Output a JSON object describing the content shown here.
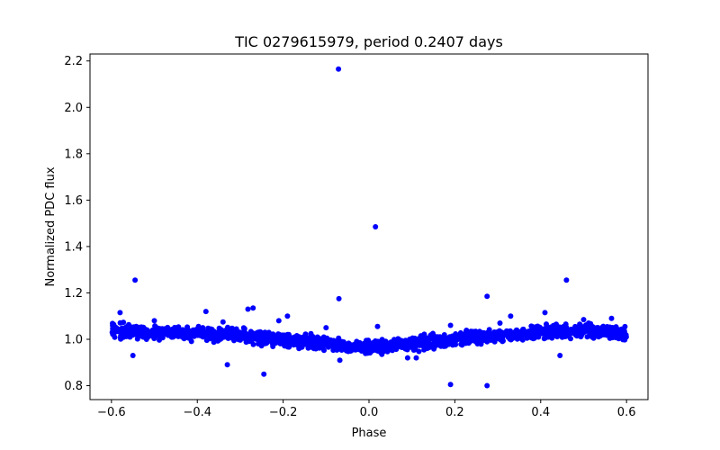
{
  "chart_data": {
    "type": "scatter",
    "title": "TIC 0279615979, period 0.2407 days",
    "xlabel": "Phase",
    "ylabel": "Normalized PDC flux",
    "xlim": [
      -0.65,
      0.65
    ],
    "ylim": [
      0.74,
      2.23
    ],
    "xticks": [
      -0.6,
      -0.4,
      -0.2,
      0.0,
      0.2,
      0.4,
      0.6
    ],
    "xtick_labels": [
      "−0.6",
      "−0.4",
      "−0.2",
      "0.0",
      "0.2",
      "0.4",
      "0.6"
    ],
    "yticks": [
      0.8,
      1.0,
      1.2,
      1.4,
      1.6,
      1.8,
      2.0,
      2.2
    ],
    "ytick_labels": [
      "0.8",
      "1.0",
      "1.2",
      "1.4",
      "1.6",
      "1.8",
      "2.0",
      "2.2"
    ],
    "grid": false,
    "marker_color": "#0000ff",
    "series": [
      {
        "name": "TIC 0279615979",
        "baseline_trend": {
          "x": [
            -0.6,
            -0.5,
            -0.4,
            -0.3,
            -0.2,
            -0.1,
            0.0,
            0.1,
            0.2,
            0.3,
            0.4,
            0.5,
            0.6
          ],
          "y": [
            1.035,
            1.03,
            1.025,
            1.015,
            1.0,
            0.98,
            0.965,
            0.98,
            1.0,
            1.015,
            1.03,
            1.035,
            1.03
          ],
          "scatter_halfwidth": 0.03,
          "approx_point_count": 1800
        },
        "outliers": {
          "x": [
            -0.071,
            0.015,
            -0.545,
            0.46,
            -0.07,
            0.275,
            -0.282,
            -0.27,
            0.33,
            0.41,
            -0.19,
            -0.58,
            -0.38,
            -0.34,
            -0.21,
            -0.1,
            0.02,
            0.19,
            0.305,
            -0.55,
            -0.33,
            -0.245,
            0.19,
            0.275,
            0.445,
            0.03,
            -0.068,
            0.09,
            0.11,
            -0.5,
            0.5,
            0.565
          ],
          "y": [
            2.165,
            1.485,
            1.255,
            1.255,
            1.175,
            1.185,
            1.13,
            1.135,
            1.1,
            1.115,
            1.1,
            1.115,
            1.12,
            1.075,
            1.08,
            1.05,
            1.055,
            1.06,
            1.07,
            0.93,
            0.89,
            0.85,
            0.805,
            0.8,
            0.93,
            0.935,
            0.91,
            0.92,
            0.92,
            1.08,
            1.085,
            1.09
          ]
        }
      }
    ]
  }
}
